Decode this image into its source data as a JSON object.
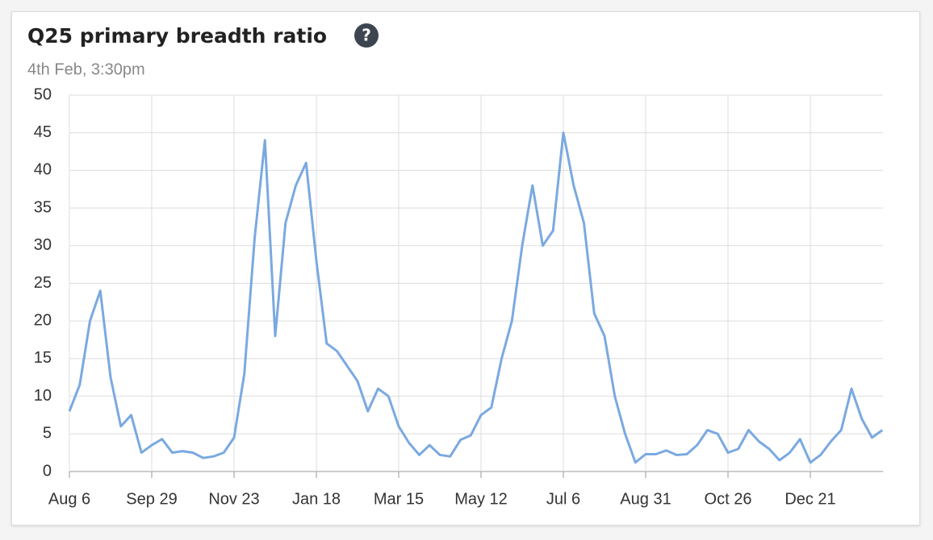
{
  "chart_data": {
    "type": "line",
    "title": "Q25 primary breadth ratio",
    "subtitle": "4th Feb, 3:30pm",
    "categories": [
      "Aug 6",
      null,
      null,
      null,
      null,
      null,
      null,
      null,
      "Sep 29",
      null,
      null,
      null,
      null,
      null,
      null,
      null,
      "Nov 23",
      null,
      null,
      null,
      null,
      null,
      null,
      null,
      "Jan 18",
      null,
      null,
      null,
      null,
      null,
      null,
      null,
      "Mar 15",
      null,
      null,
      null,
      null,
      null,
      null,
      null,
      "May 12",
      null,
      null,
      null,
      null,
      null,
      null,
      null,
      "Jul 6",
      null,
      null,
      null,
      null,
      null,
      null,
      null,
      "Aug 31",
      null,
      null,
      null,
      null,
      null,
      null,
      null,
      "Oct 26",
      null,
      null,
      null,
      null,
      null,
      null,
      null,
      "Dec 21",
      null,
      null,
      null,
      null,
      null,
      null,
      null
    ],
    "series": [
      {
        "name": "Q25 primary breadth ratio",
        "color": "#7aa9e0",
        "values": [
          8,
          11.5,
          20,
          24,
          12.5,
          6,
          7.5,
          2.5,
          3.5,
          4.3,
          2.5,
          2.7,
          2.5,
          1.8,
          2,
          2.5,
          4.5,
          13,
          31,
          44,
          18,
          33,
          38,
          41,
          28,
          17,
          16,
          14,
          12,
          8,
          11,
          10,
          6,
          3.8,
          2.2,
          3.5,
          2.2,
          2,
          4.2,
          4.8,
          7.5,
          8.5,
          15,
          20,
          30,
          38,
          30,
          32,
          45,
          38,
          33,
          21,
          18,
          10,
          5,
          1.2,
          2.3,
          2.3,
          2.8,
          2.2,
          2.3,
          3.5,
          5.5,
          5,
          2.5,
          3,
          5.5,
          4,
          3,
          1.5,
          2.5,
          4.3,
          1.2,
          2.2,
          4,
          5.5,
          11,
          7,
          4.5,
          5.5
        ]
      }
    ],
    "ylim": [
      0,
      50
    ],
    "yticks": [
      0,
      5,
      10,
      15,
      20,
      25,
      30,
      35,
      40,
      45,
      50
    ],
    "grid": true
  }
}
